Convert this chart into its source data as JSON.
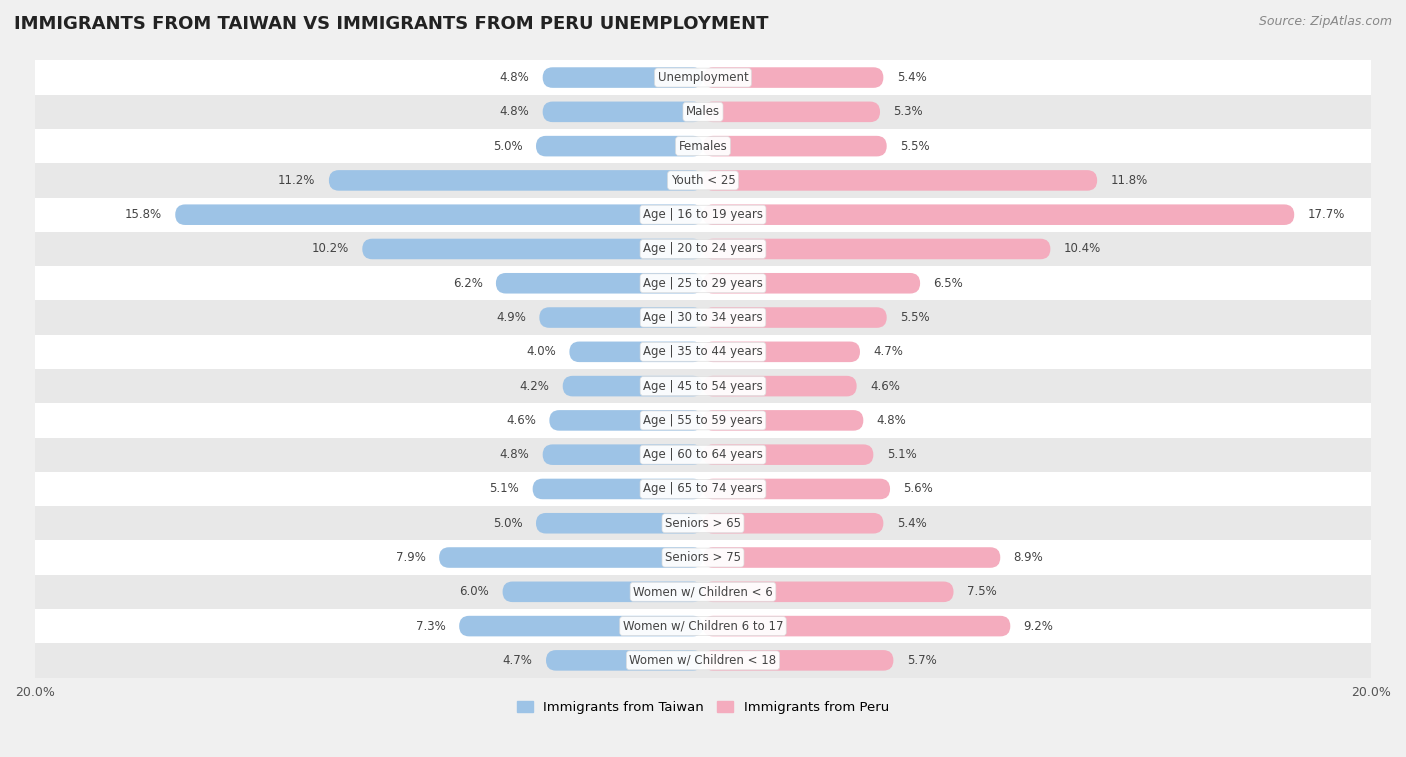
{
  "title": "IMMIGRANTS FROM TAIWAN VS IMMIGRANTS FROM PERU UNEMPLOYMENT",
  "source": "Source: ZipAtlas.com",
  "categories": [
    "Unemployment",
    "Males",
    "Females",
    "Youth < 25",
    "Age | 16 to 19 years",
    "Age | 20 to 24 years",
    "Age | 25 to 29 years",
    "Age | 30 to 34 years",
    "Age | 35 to 44 years",
    "Age | 45 to 54 years",
    "Age | 55 to 59 years",
    "Age | 60 to 64 years",
    "Age | 65 to 74 years",
    "Seniors > 65",
    "Seniors > 75",
    "Women w/ Children < 6",
    "Women w/ Children 6 to 17",
    "Women w/ Children < 18"
  ],
  "taiwan_values": [
    4.8,
    4.8,
    5.0,
    11.2,
    15.8,
    10.2,
    6.2,
    4.9,
    4.0,
    4.2,
    4.6,
    4.8,
    5.1,
    5.0,
    7.9,
    6.0,
    7.3,
    4.7
  ],
  "peru_values": [
    5.4,
    5.3,
    5.5,
    11.8,
    17.7,
    10.4,
    6.5,
    5.5,
    4.7,
    4.6,
    4.8,
    5.1,
    5.6,
    5.4,
    8.9,
    7.5,
    9.2,
    5.7
  ],
  "taiwan_color": "#9DC3E6",
  "peru_color": "#F4ACBE",
  "taiwan_label": "Immigrants from Taiwan",
  "peru_label": "Immigrants from Peru",
  "xlim": 20.0,
  "background_color": "#F0F0F0",
  "row_color_even": "#FFFFFF",
  "row_color_odd": "#E8E8E8",
  "title_fontsize": 13,
  "source_fontsize": 9,
  "label_fontsize": 8.5,
  "value_fontsize": 8.5,
  "bar_height": 0.6
}
